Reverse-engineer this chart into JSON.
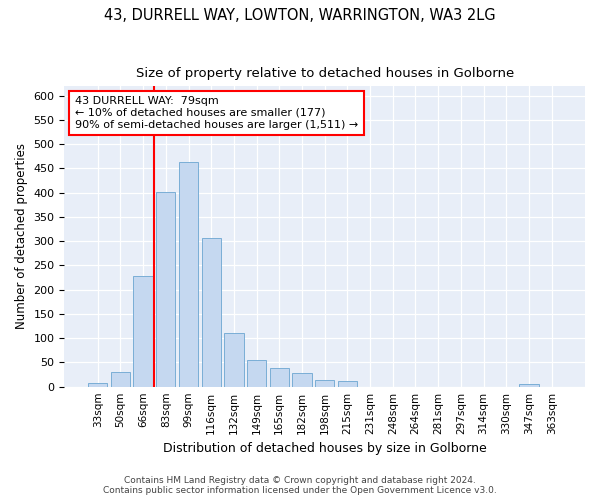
{
  "title1": "43, DURRELL WAY, LOWTON, WARRINGTON, WA3 2LG",
  "title2": "Size of property relative to detached houses in Golborne",
  "xlabel": "Distribution of detached houses by size in Golborne",
  "ylabel": "Number of detached properties",
  "categories": [
    "33sqm",
    "50sqm",
    "66sqm",
    "83sqm",
    "99sqm",
    "116sqm",
    "132sqm",
    "149sqm",
    "165sqm",
    "182sqm",
    "198sqm",
    "215sqm",
    "231sqm",
    "248sqm",
    "264sqm",
    "281sqm",
    "297sqm",
    "314sqm",
    "330sqm",
    "347sqm",
    "363sqm"
  ],
  "values": [
    7,
    30,
    228,
    402,
    463,
    307,
    110,
    54,
    38,
    28,
    14,
    12,
    0,
    0,
    0,
    0,
    0,
    0,
    0,
    5,
    0
  ],
  "bar_color": "#c5d8f0",
  "bar_edge_color": "#7aaed6",
  "vline_color": "red",
  "vline_pos": 2.5,
  "annotation_line1": "43 DURRELL WAY:  79sqm",
  "annotation_line2": "← 10% of detached houses are smaller (177)",
  "annotation_line3": "90% of semi-detached houses are larger (1,511) →",
  "annotation_box_color": "white",
  "annotation_box_edge_color": "red",
  "ylim": [
    0,
    620
  ],
  "yticks": [
    0,
    50,
    100,
    150,
    200,
    250,
    300,
    350,
    400,
    450,
    500,
    550,
    600
  ],
  "background_color": "#e8eef8",
  "footer_text": "Contains HM Land Registry data © Crown copyright and database right 2024.\nContains public sector information licensed under the Open Government Licence v3.0.",
  "title1_fontsize": 10.5,
  "title2_fontsize": 9.5,
  "xlabel_fontsize": 9,
  "ylabel_fontsize": 8.5,
  "annotation_fontsize": 8,
  "footer_fontsize": 6.5
}
